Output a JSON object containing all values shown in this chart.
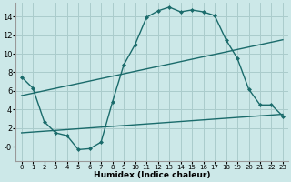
{
  "xlabel": "Humidex (Indice chaleur)",
  "bg_color": "#cce8e8",
  "grid_color": "#aacccc",
  "line_color": "#1a6b6b",
  "xlim": [
    -0.5,
    23.5
  ],
  "ylim": [
    -1.5,
    15.5
  ],
  "xticks": [
    0,
    1,
    2,
    3,
    4,
    5,
    6,
    7,
    8,
    9,
    10,
    11,
    12,
    13,
    14,
    15,
    16,
    17,
    18,
    19,
    20,
    21,
    22,
    23
  ],
  "yticks": [
    0,
    2,
    4,
    6,
    8,
    10,
    12,
    14
  ],
  "ytick_labels": [
    "-0",
    "2",
    "4",
    "6",
    "8",
    "10",
    "12",
    "14"
  ],
  "line1_x": [
    0,
    1,
    2,
    3,
    4,
    5,
    6,
    7,
    8,
    9,
    10,
    11,
    12,
    13,
    14,
    15,
    16,
    17,
    18,
    19,
    20,
    21,
    22,
    23
  ],
  "line1_y": [
    7.5,
    6.3,
    2.7,
    1.5,
    1.2,
    -0.3,
    -0.2,
    0.5,
    4.8,
    8.8,
    11.0,
    13.9,
    14.6,
    15.0,
    14.5,
    14.7,
    14.5,
    14.1,
    11.5,
    9.5,
    6.2,
    4.5,
    4.5,
    3.3
  ],
  "line2_x": [
    0,
    23
  ],
  "line2_y": [
    1.5,
    3.5
  ],
  "line3_x": [
    0,
    23
  ],
  "line3_y": [
    5.5,
    11.5
  ]
}
